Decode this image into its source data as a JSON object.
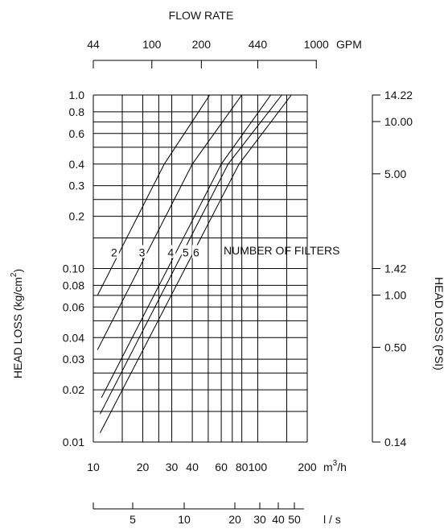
{
  "chart_data": {
    "type": "line",
    "title": "FLOW RATE",
    "xlabel": "m3/h",
    "xscale": "log",
    "yscale": "log",
    "xlim": [
      10,
      200
    ],
    "ylim": [
      0.01,
      1.0
    ],
    "grid": true,
    "x_ticks": [
      {
        "value": 10,
        "label": "10"
      },
      {
        "value": 20,
        "label": "20"
      },
      {
        "value": 30,
        "label": "30"
      },
      {
        "value": 40,
        "label": "40"
      },
      {
        "value": 60,
        "label": "60"
      },
      {
        "value": 80,
        "label": "80"
      },
      {
        "value": 100,
        "label": "100"
      },
      {
        "value": 200,
        "label": "200"
      }
    ],
    "x_grid": [
      10,
      15,
      20,
      25,
      30,
      40,
      50,
      60,
      70,
      80,
      100,
      150,
      200
    ],
    "x_unit": {
      "base": "m",
      "sup": "3",
      "rest": "/h"
    },
    "y_left": {
      "label": "HEAD LOSS (kg/cm2)",
      "label_base": "HEAD LOSS (kg/cm",
      "label_sup": "2",
      "label_end": ")",
      "ticks": [
        {
          "value": 1.0,
          "label": "1.0"
        },
        {
          "value": 0.8,
          "label": "0.8"
        },
        {
          "value": 0.6,
          "label": "0.6"
        },
        {
          "value": 0.4,
          "label": "0.4"
        },
        {
          "value": 0.3,
          "label": "0.3"
        },
        {
          "value": 0.2,
          "label": "0.2"
        },
        {
          "value": 0.1,
          "label": "0.10"
        },
        {
          "value": 0.08,
          "label": "0.08"
        },
        {
          "value": 0.06,
          "label": "0.06"
        },
        {
          "value": 0.04,
          "label": "0.04"
        },
        {
          "value": 0.03,
          "label": "0.03"
        },
        {
          "value": 0.02,
          "label": "0.02"
        },
        {
          "value": 0.01,
          "label": "0.01"
        }
      ],
      "grid": [
        1.0,
        0.8,
        0.7,
        0.6,
        0.5,
        0.4,
        0.3,
        0.25,
        0.2,
        0.15,
        0.1,
        0.08,
        0.07,
        0.06,
        0.05,
        0.04,
        0.03,
        0.025,
        0.02,
        0.015,
        0.01
      ]
    },
    "y_right": {
      "label": "HEAD LOSS (PSI)",
      "ticks": [
        {
          "value": 1.0,
          "label": "14.22"
        },
        {
          "value": 0.703,
          "label": "10.00"
        },
        {
          "value": 0.3515,
          "label": "5.00"
        },
        {
          "value": 0.1,
          "label": "1.42"
        },
        {
          "value": 0.0703,
          "label": "1.00"
        },
        {
          "value": 0.03515,
          "label": "0.50"
        },
        {
          "value": 0.01,
          "label": "0.14"
        }
      ]
    },
    "top_axis": {
      "ticks": [
        {
          "value": 10,
          "label": "44"
        },
        {
          "value": 22.7,
          "label": "100"
        },
        {
          "value": 45.4,
          "label": "200"
        },
        {
          "value": 100,
          "label": "440"
        },
        {
          "value": 227,
          "label": "1000"
        }
      ],
      "unit": "GPM"
    },
    "bottom_axis": {
      "ticks": [
        {
          "value": 18,
          "label": "5"
        },
        {
          "value": 36,
          "label": "10"
        },
        {
          "value": 72,
          "label": "20"
        },
        {
          "value": 108,
          "label": "30"
        },
        {
          "value": 144,
          "label": "40"
        },
        {
          "value": 180,
          "label": "50"
        }
      ],
      "minor_ticks": [
        10.8,
        36,
        72,
        108,
        144,
        180
      ],
      "unit": "l / s"
    },
    "series_caption": "NUMBER OF FILTERS",
    "series": [
      {
        "name": "2",
        "points": [
          [
            10.6,
            0.07
          ],
          [
            27,
            0.4
          ],
          [
            51,
            1.0
          ]
        ]
      },
      {
        "name": "3",
        "points": [
          [
            10.6,
            0.034
          ],
          [
            40,
            0.4
          ],
          [
            80,
            1.0
          ]
        ]
      },
      {
        "name": "4",
        "points": [
          [
            11.2,
            0.018
          ],
          [
            60,
            0.4
          ],
          [
            120,
            1.0
          ]
        ]
      },
      {
        "name": "5",
        "points": [
          [
            11.0,
            0.0145
          ],
          [
            66,
            0.4
          ],
          [
            140,
            1.0
          ]
        ]
      },
      {
        "name": "6",
        "points": [
          [
            11.0,
            0.0113
          ],
          [
            77,
            0.4
          ],
          [
            160,
            1.0
          ]
        ]
      }
    ],
    "series_label_y": 0.12
  }
}
